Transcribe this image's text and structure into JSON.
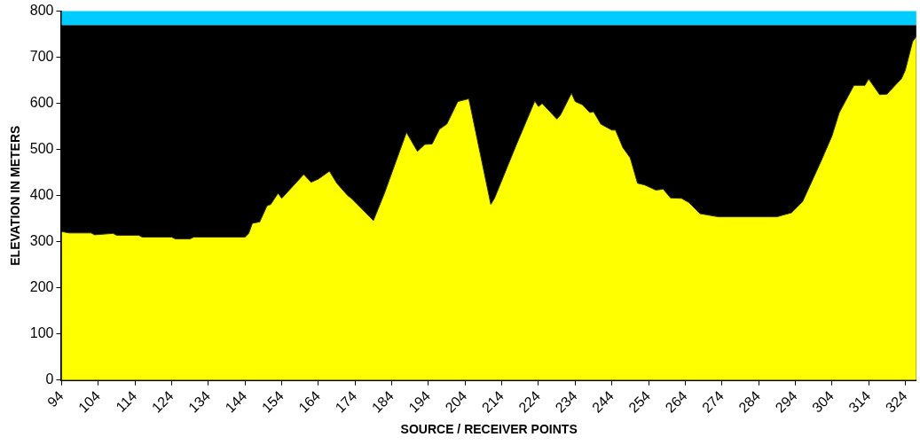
{
  "chart_data": {
    "type": "area",
    "xlabel": "SOURCE / RECEIVER POINTS",
    "ylabel": "ELEVATION IN METERS",
    "xlim": [
      94,
      327
    ],
    "xticks": [
      94,
      104,
      114,
      124,
      134,
      144,
      154,
      164,
      174,
      184,
      194,
      204,
      214,
      224,
      234,
      244,
      254,
      264,
      274,
      284,
      294,
      304,
      314,
      324
    ],
    "ylim": [
      0,
      800
    ],
    "yticks": [
      0,
      100,
      200,
      300,
      400,
      500,
      600,
      700,
      800
    ],
    "grid": false,
    "legend": false,
    "bands": [
      {
        "axis": "y",
        "from": 0,
        "to": 770,
        "color": "#000000"
      },
      {
        "axis": "y",
        "from": 770,
        "to": 800,
        "color": "#00ccff"
      }
    ],
    "series": [
      {
        "color": "#ffff00",
        "x": [
          94,
          96,
          102,
          103,
          108,
          109,
          115,
          116,
          124,
          125,
          129,
          130,
          144,
          145,
          146,
          148,
          150,
          151,
          153,
          154,
          160,
          162,
          164,
          167,
          169,
          172,
          173,
          179,
          182,
          186,
          188,
          191,
          193,
          195,
          197,
          199,
          202,
          205,
          211,
          212,
          218,
          223,
          224,
          225,
          229,
          230,
          233,
          234,
          236,
          238,
          239,
          241,
          244,
          245,
          247,
          249,
          251,
          253,
          256,
          258,
          260,
          263,
          265,
          268,
          273,
          289,
          293,
          296,
          301,
          304,
          306,
          310,
          313,
          314,
          317,
          319,
          323,
          324,
          326,
          327
        ],
        "values": [
          322,
          319,
          319,
          315,
          318,
          314,
          314,
          310,
          310,
          306,
          306,
          310,
          310,
          318,
          340,
          343,
          378,
          381,
          405,
          394,
          446,
          429,
          436,
          453,
          427,
          400,
          394,
          346,
          405,
          493,
          537,
          496,
          511,
          512,
          544,
          555,
          604,
          610,
          381,
          394,
          511,
          605,
          593,
          600,
          566,
          575,
          622,
          604,
          597,
          580,
          582,
          555,
          542,
          542,
          504,
          482,
          427,
          423,
          412,
          414,
          395,
          394,
          385,
          361,
          354,
          354,
          363,
          387,
          474,
          529,
          580,
          639,
          639,
          653,
          619,
          620,
          654,
          672,
          734,
          745
        ]
      }
    ]
  }
}
